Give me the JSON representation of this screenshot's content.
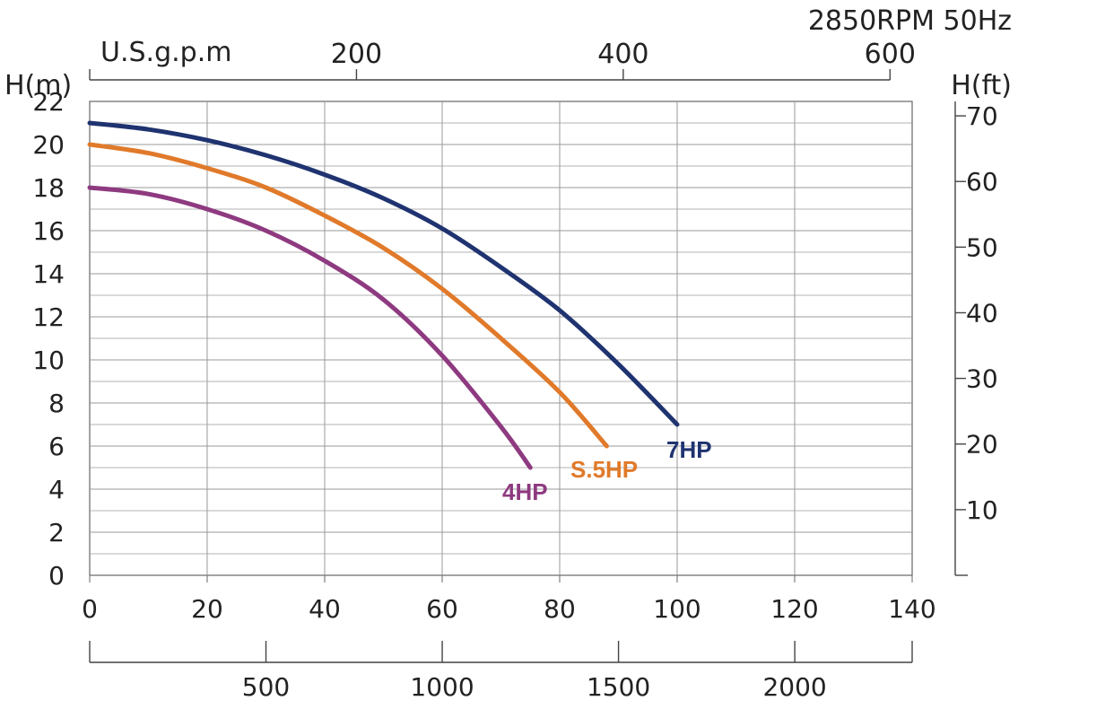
{
  "chart_data": {
    "type": "line",
    "header": "2850RPM  50Hz",
    "y_left_label": "H(m)",
    "y_right_label": "H(ft)",
    "x_top_label": "U.S.g.p.m",
    "x_bottom_ticks": [
      "0",
      "20",
      "40",
      "60",
      "80",
      "100",
      "120",
      "140"
    ],
    "x_bottom_range": [
      0,
      140
    ],
    "y_range": [
      0,
      22
    ],
    "y_left_ticks": [
      "0",
      "2",
      "4",
      "6",
      "8",
      "10",
      "12",
      "14",
      "16",
      "18",
      "20",
      "22"
    ],
    "y_right_ticks": [
      {
        "label": "10",
        "value": 10
      },
      {
        "label": "20",
        "value": 20
      },
      {
        "label": "30",
        "value": 30
      },
      {
        "label": "40",
        "value": 40
      },
      {
        "label": "50",
        "value": 50
      },
      {
        "label": "60",
        "value": 60
      },
      {
        "label": "70",
        "value": 70
      }
    ],
    "y_right_range": [
      0,
      72.2
    ],
    "x_top_ticks": [
      {
        "label": "200",
        "value": 200
      },
      {
        "label": "400",
        "value": 400
      },
      {
        "label": "600",
        "value": 600
      }
    ],
    "x_top_range": [
      0,
      616.6
    ],
    "x_extra_ticks": [
      {
        "label": "500",
        "value": 500
      },
      {
        "label": "1000",
        "value": 1000
      },
      {
        "label": "1500",
        "value": 1500
      },
      {
        "label": "2000",
        "value": 2000
      }
    ],
    "x_extra_range": [
      0,
      2333
    ],
    "grid": true,
    "series": [
      {
        "name": "7HP",
        "color": "#1f3370",
        "x": [
          0,
          10,
          20,
          30,
          40,
          50,
          60,
          70,
          80,
          90,
          100
        ],
        "y": [
          21,
          20.7,
          20.2,
          19.5,
          18.6,
          17.5,
          16.1,
          14.3,
          12.3,
          9.8,
          7
        ]
      },
      {
        "name": "5.5HP",
        "color": "#e07a2a",
        "x": [
          0,
          10,
          20,
          30,
          40,
          50,
          60,
          70,
          80,
          88
        ],
        "y": [
          20,
          19.6,
          18.9,
          18,
          16.7,
          15.2,
          13.3,
          11,
          8.5,
          6
        ]
      },
      {
        "name": "4HP",
        "color": "#8e3a80",
        "x": [
          0,
          10,
          20,
          30,
          40,
          50,
          60,
          70,
          75
        ],
        "y": [
          18,
          17.7,
          17,
          16,
          14.6,
          12.8,
          10.2,
          6.9,
          5
        ]
      }
    ],
    "series_labels": [
      "4HP",
      "S.5HP",
      "7HP"
    ]
  }
}
